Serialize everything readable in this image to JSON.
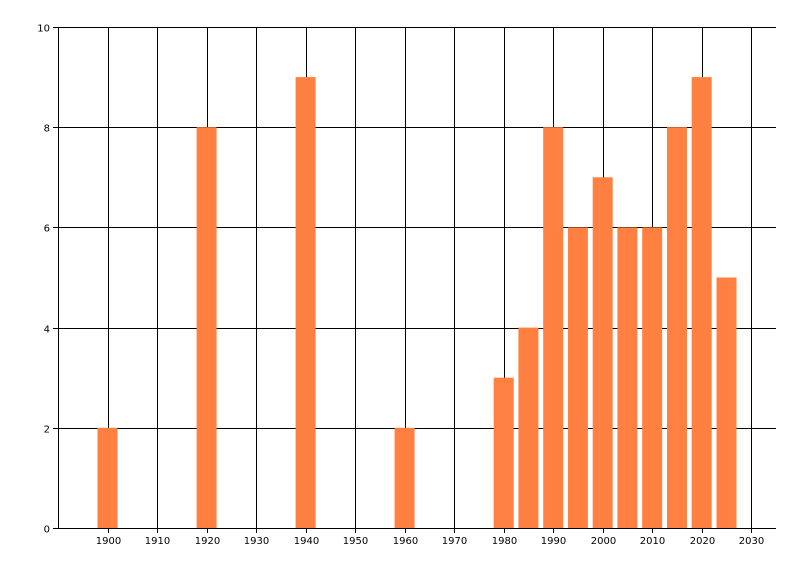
{
  "chart_data": {
    "type": "bar",
    "title": "",
    "xlabel": "",
    "ylabel": "",
    "x": [
      1900,
      1920,
      1940,
      1960,
      1980,
      1985,
      1990,
      1995,
      2000,
      2005,
      2010,
      2015,
      2020,
      2025
    ],
    "values": [
      2,
      8,
      9,
      2,
      3,
      4,
      8,
      6,
      7,
      6,
      6,
      8,
      9,
      5
    ],
    "xlim": [
      1890,
      2035
    ],
    "ylim": [
      0,
      10
    ],
    "x_ticks": [
      1900,
      1910,
      1920,
      1930,
      1940,
      1950,
      1960,
      1970,
      1980,
      1990,
      2000,
      2010,
      2020,
      2030
    ],
    "y_ticks": [
      0,
      2,
      4,
      6,
      8,
      10
    ],
    "bar_color": "#FF8040",
    "grid_color": "#000000",
    "grid": true,
    "legend": "none"
  }
}
